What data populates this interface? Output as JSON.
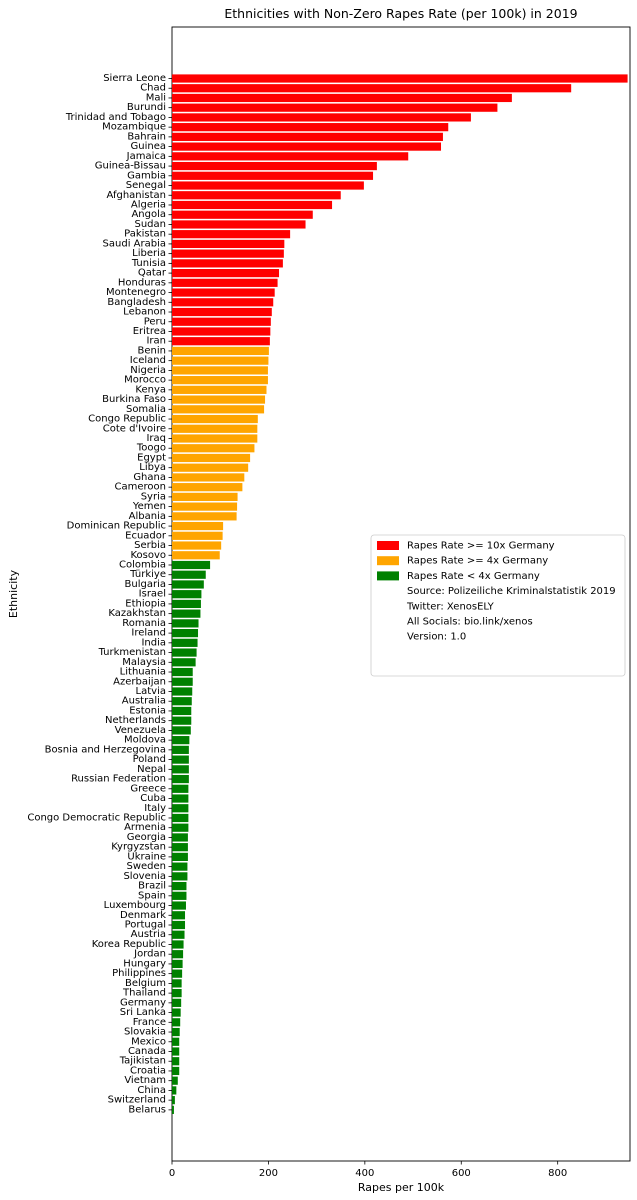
{
  "chart_data": {
    "type": "bar",
    "orientation": "horizontal",
    "title": "Ethnicities with Non-Zero Rapes Rate (per 100k) in 2019",
    "xlabel": "Rapes per 100k",
    "ylabel": "Ethnicity",
    "xlim": [
      0,
      950
    ],
    "x_ticks": [
      0,
      200,
      400,
      600,
      800
    ],
    "grid": false,
    "legend_position": "center-right",
    "colors": {
      "high": "#ff0000",
      "medium": "#ffa500",
      "low": "#008000"
    },
    "legend": [
      {
        "label": "Rapes Rate >= 10x Germany",
        "color": "#ff0000"
      },
      {
        "label": "Rapes Rate >= 4x Germany",
        "color": "#ffa500"
      },
      {
        "label": "Rapes Rate < 4x Germany",
        "color": "#008000"
      },
      {
        "label": "Source: Polizeiliche Kriminalstatistik 2019",
        "color": null
      },
      {
        "label": "Twitter: XenosELY",
        "color": null
      },
      {
        "label": "All Socials: bio.link/xenos",
        "color": null
      },
      {
        "label": "Version: 1.0",
        "color": null
      }
    ],
    "categories": [
      "Sierra Leone",
      "Chad",
      "Mali",
      "Burundi",
      "Trinidad and Tobago",
      "Mozambique",
      "Bahrain",
      "Guinea",
      "Jamaica",
      "Guinea-Bissau",
      "Gambia",
      "Senegal",
      "Afghanistan",
      "Algeria",
      "Angola",
      "Sudan",
      "Pakistan",
      "Saudi Arabia",
      "Liberia",
      "Tunisia",
      "Qatar",
      "Honduras",
      "Montenegro",
      "Bangladesh",
      "Lebanon",
      "Peru",
      "Eritrea",
      "Iran",
      "Benin",
      "Iceland",
      "Nigeria",
      "Morocco",
      "Kenya",
      "Burkina Faso",
      "Somalia",
      "Congo Republic",
      "Cote d'Ivoire",
      "Iraq",
      "Toogo",
      "Egypt",
      "Libya",
      "Ghana",
      "Cameroon",
      "Syria",
      "Yemen",
      "Albania",
      "Dominican Republic",
      "Ecuador",
      "Serbia",
      "Kosovo",
      "Colombia",
      "Türkiye",
      "Bulgaria",
      "Israel",
      "Ethiopia",
      "Kazakhstan",
      "Romania",
      "Ireland",
      "India",
      "Turkmenistan",
      "Malaysia",
      "Lithuania",
      "Azerbaijan",
      "Latvia",
      "Australia",
      "Estonia",
      "Netherlands",
      "Venezuela",
      "Moldova",
      "Bosnia and Herzegovina",
      "Poland",
      "Nepal",
      "Russian Federation",
      "Greece",
      "Cuba",
      "Italy",
      "Congo Democratic Republic",
      "Armenia",
      "Georgia",
      "Kyrgyzstan",
      "Ukraine",
      "Sweden",
      "Slovenia",
      "Brazil",
      "Spain",
      "Luxembourg",
      "Denmark",
      "Portugal",
      "Austria",
      "Korea Republic",
      "Jordan",
      "Hungary",
      "Philippines",
      "Belgium",
      "Thailand",
      "Germany",
      "Sri Lanka",
      "France",
      "Slovakia",
      "Mexico",
      "Canada",
      "Tajikistan",
      "Croatia",
      "Vietnam",
      "China",
      "Switzerland",
      "Belarus"
    ],
    "values": [
      945,
      828,
      705,
      675,
      620,
      573,
      562,
      558,
      490,
      425,
      417,
      398,
      350,
      332,
      292,
      277,
      245,
      233,
      232,
      230,
      222,
      219,
      213,
      210,
      207,
      205,
      204,
      203,
      201,
      200,
      199,
      199,
      196,
      193,
      191,
      178,
      177,
      177,
      171,
      162,
      158,
      150,
      146,
      136,
      135,
      134,
      106,
      105,
      102,
      99,
      79,
      70,
      66,
      61,
      60,
      59,
      55,
      54,
      53,
      51,
      49,
      43,
      43,
      42,
      41,
      40,
      40,
      39,
      36,
      35,
      35,
      35,
      35,
      34,
      34,
      34,
      34,
      34,
      33,
      33,
      33,
      32,
      32,
      30,
      30,
      29,
      27,
      27,
      26,
      24,
      23,
      22,
      21,
      20,
      20,
      19,
      18,
      17,
      16,
      15,
      15,
      15,
      15,
      12,
      9,
      6,
      4
    ],
    "group_counts": [
      28,
      22,
      57
    ]
  }
}
